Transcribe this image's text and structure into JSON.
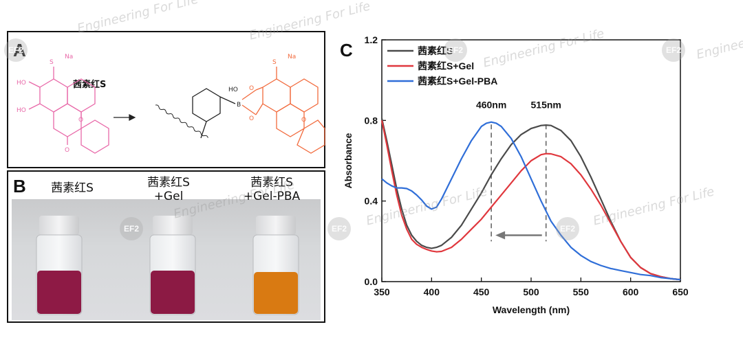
{
  "watermark": {
    "text": "Engineering For Life",
    "logo": "EF2"
  },
  "panel_a": {
    "letter": "A",
    "compound_label": "茜素红S",
    "atoms": {
      "na": "Na",
      "plus": "+",
      "s": "S",
      "o": "O",
      "minus": "−",
      "ho": "HO",
      "b": "B"
    }
  },
  "panel_b": {
    "letter": "B",
    "vials": [
      {
        "label_line1": "茜素红S",
        "label_line2": "",
        "liquid_color": "#8e1a45"
      },
      {
        "label_line1": "茜素红S",
        "label_line2": "+Gel",
        "liquid_color": "#8c1a44"
      },
      {
        "label_line1": "茜素红S",
        "label_line2": "+Gel-PBA",
        "liquid_color": "#d97a12"
      }
    ]
  },
  "panel_c": {
    "letter": "C"
  },
  "colors": {
    "pink_structure": "#e868a8",
    "orange_structure": "#f26a3c",
    "arrow_gray": "#777777"
  },
  "chart_data": {
    "type": "line",
    "xlabel": "Wavelength (nm)",
    "ylabel": "Absorbance",
    "xlim": [
      350,
      650
    ],
    "ylim": [
      0.0,
      1.2
    ],
    "xticks": [
      350,
      400,
      450,
      500,
      550,
      600,
      650
    ],
    "yticks": [
      0.0,
      0.4,
      0.8,
      1.2
    ],
    "legend_position": "top-left",
    "annotations": [
      {
        "text": "460nm",
        "x": 460
      },
      {
        "text": "515nm",
        "x": 515
      }
    ],
    "shift_arrow": {
      "from_x": 515,
      "to_x": 460,
      "y": 0.23
    },
    "series": [
      {
        "name": "茜素红S",
        "color": "#4a4a4a",
        "x": [
          350,
          355,
          360,
          365,
          370,
          375,
          380,
          385,
          390,
          395,
          400,
          405,
          410,
          420,
          430,
          440,
          450,
          460,
          470,
          480,
          490,
          500,
          510,
          515,
          520,
          530,
          540,
          550,
          560,
          570,
          580,
          590,
          600,
          610,
          620,
          630,
          640,
          650
        ],
        "y": [
          0.81,
          0.7,
          0.58,
          0.46,
          0.36,
          0.28,
          0.23,
          0.2,
          0.18,
          0.17,
          0.165,
          0.17,
          0.18,
          0.22,
          0.28,
          0.36,
          0.44,
          0.53,
          0.61,
          0.68,
          0.73,
          0.76,
          0.775,
          0.777,
          0.775,
          0.75,
          0.7,
          0.62,
          0.52,
          0.41,
          0.3,
          0.2,
          0.12,
          0.07,
          0.04,
          0.025,
          0.015,
          0.01
        ]
      },
      {
        "name": "茜素红S+Gel",
        "color": "#e0373d",
        "x": [
          350,
          355,
          360,
          365,
          370,
          375,
          380,
          385,
          390,
          395,
          400,
          405,
          410,
          420,
          430,
          440,
          450,
          460,
          470,
          480,
          490,
          500,
          510,
          515,
          520,
          530,
          540,
          550,
          560,
          570,
          580,
          590,
          600,
          610,
          620,
          630,
          640,
          650
        ],
        "y": [
          0.8,
          0.68,
          0.55,
          0.43,
          0.33,
          0.26,
          0.21,
          0.185,
          0.17,
          0.16,
          0.152,
          0.148,
          0.15,
          0.17,
          0.21,
          0.26,
          0.31,
          0.37,
          0.43,
          0.49,
          0.55,
          0.6,
          0.63,
          0.635,
          0.634,
          0.62,
          0.585,
          0.53,
          0.46,
          0.38,
          0.29,
          0.2,
          0.12,
          0.07,
          0.04,
          0.025,
          0.015,
          0.01
        ]
      },
      {
        "name": "茜素红S+Gel-PBA",
        "color": "#2f6ed8",
        "x": [
          350,
          355,
          360,
          365,
          370,
          375,
          380,
          385,
          390,
          395,
          400,
          405,
          410,
          420,
          430,
          440,
          450,
          455,
          460,
          465,
          470,
          480,
          490,
          500,
          510,
          515,
          520,
          530,
          540,
          550,
          560,
          570,
          580,
          590,
          600,
          610,
          620,
          630,
          640,
          650
        ],
        "y": [
          0.51,
          0.49,
          0.475,
          0.465,
          0.465,
          0.462,
          0.45,
          0.43,
          0.405,
          0.375,
          0.36,
          0.37,
          0.41,
          0.51,
          0.61,
          0.7,
          0.77,
          0.786,
          0.792,
          0.786,
          0.77,
          0.71,
          0.62,
          0.51,
          0.4,
          0.35,
          0.3,
          0.23,
          0.17,
          0.13,
          0.1,
          0.08,
          0.065,
          0.055,
          0.045,
          0.035,
          0.03,
          0.02,
          0.015,
          0.01
        ]
      }
    ]
  }
}
